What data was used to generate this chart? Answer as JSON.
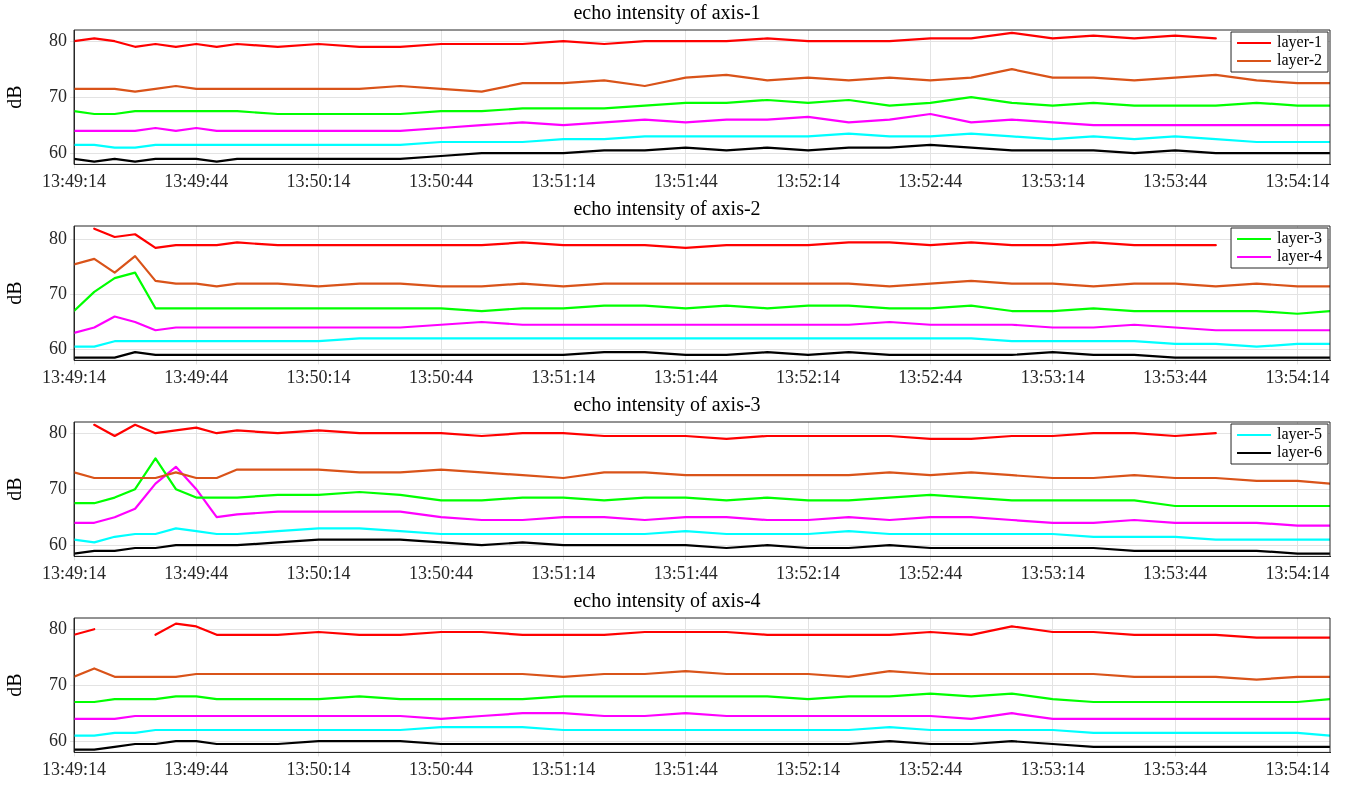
{
  "chart_data": [
    {
      "type": "line",
      "title": "echo intensity of axis-1",
      "ylabel": "dB",
      "grid": true,
      "legend": "top right",
      "marker": "none",
      "line_style": "solid",
      "x": [
        13.82056,
        13.82194,
        13.82333,
        13.82472,
        13.82611,
        13.8275,
        13.82889,
        13.83028,
        13.83167,
        13.83444,
        13.83722,
        13.84,
        13.84278,
        13.84556,
        13.84833,
        13.85111,
        13.85389,
        13.85667,
        13.85944,
        13.86222,
        13.865,
        13.86778,
        13.87056,
        13.87333,
        13.87611,
        13.87889,
        13.88167,
        13.88444,
        13.88722,
        13.89,
        13.89278,
        13.89556,
        13.89833,
        13.90111,
        13.90389,
        13.90611
      ],
      "xlim": [
        13.82056,
        13.90611
      ],
      "xticks": [
        {
          "value": 13.82056,
          "label": "13:49:14"
        },
        {
          "value": 13.82889,
          "label": "13:49:44"
        },
        {
          "value": 13.83722,
          "label": "13:50:14"
        },
        {
          "value": 13.84556,
          "label": "13:50:44"
        },
        {
          "value": 13.85389,
          "label": "13:51:14"
        },
        {
          "value": 13.86222,
          "label": "13:51:44"
        },
        {
          "value": 13.87056,
          "label": "13:52:14"
        },
        {
          "value": 13.87889,
          "label": "13:52:44"
        },
        {
          "value": 13.88722,
          "label": "13:53:14"
        },
        {
          "value": 13.89556,
          "label": "13:53:44"
        },
        {
          "value": 13.90389,
          "label": "13:54:14"
        }
      ],
      "ylim": [
        58,
        82
      ],
      "yticks": [
        60,
        70,
        80
      ],
      "series": [
        {
          "name": "layer-1",
          "color": "#ff0000",
          "values": [
            80,
            80.5,
            80,
            79,
            79.5,
            79,
            79.5,
            79,
            79.5,
            79,
            79.5,
            79,
            79,
            79.5,
            79.5,
            79.5,
            80,
            79.5,
            80,
            80,
            80,
            80.5,
            80,
            80,
            80,
            80.5,
            80.5,
            81.5,
            80.5,
            81,
            80.5,
            81,
            80.5,
            null,
            null,
            null
          ]
        },
        {
          "name": "layer-2",
          "color": "#d95319",
          "values": [
            71.5,
            71.5,
            71.5,
            71,
            71.5,
            72,
            71.5,
            71.5,
            71.5,
            71.5,
            71.5,
            71.5,
            72,
            71.5,
            71,
            72.5,
            72.5,
            73,
            72,
            73.5,
            74,
            73,
            73.5,
            73,
            73.5,
            73,
            73.5,
            75,
            73.5,
            73.5,
            73,
            73.5,
            74,
            73,
            72.5,
            72.5
          ]
        },
        {
          "color": "#00ff00",
          "values": [
            67.5,
            67,
            67,
            67.5,
            67.5,
            67.5,
            67.5,
            67.5,
            67.5,
            67,
            67,
            67,
            67,
            67.5,
            67.5,
            68,
            68,
            68,
            68.5,
            69,
            69,
            69.5,
            69,
            69.5,
            68.5,
            69,
            70,
            69,
            68.5,
            69,
            68.5,
            68.5,
            68.5,
            69,
            68.5,
            68.5
          ]
        },
        {
          "color": "#ff00ff",
          "values": [
            64,
            64,
            64,
            64,
            64.5,
            64,
            64.5,
            64,
            64,
            64,
            64,
            64,
            64,
            64.5,
            65,
            65.5,
            65,
            65.5,
            66,
            65.5,
            66,
            66,
            66.5,
            65.5,
            66,
            67,
            65.5,
            66,
            65.5,
            65,
            65,
            65,
            65,
            65,
            65,
            65
          ]
        },
        {
          "color": "#00ffff",
          "values": [
            61.5,
            61.5,
            61,
            61,
            61.5,
            61.5,
            61.5,
            61.5,
            61.5,
            61.5,
            61.5,
            61.5,
            61.5,
            62,
            62,
            62,
            62.5,
            62.5,
            63,
            63,
            63,
            63,
            63,
            63.5,
            63,
            63,
            63.5,
            63,
            62.5,
            63,
            62.5,
            63,
            62.5,
            62,
            62,
            62
          ]
        },
        {
          "color": "#000000",
          "values": [
            59,
            58.5,
            59,
            58.5,
            59,
            59,
            59,
            58.5,
            59,
            59,
            59,
            59,
            59,
            59.5,
            60,
            60,
            60,
            60.5,
            60.5,
            61,
            60.5,
            61,
            60.5,
            61,
            61,
            61.5,
            61,
            60.5,
            60.5,
            60.5,
            60,
            60.5,
            60,
            60,
            60,
            60
          ]
        }
      ]
    },
    {
      "type": "line",
      "title": "echo intensity of axis-2",
      "ylabel": "dB",
      "grid": true,
      "legend": "top right",
      "marker": "none",
      "line_style": "solid",
      "x": [
        13.82056,
        13.82194,
        13.82333,
        13.82472,
        13.82611,
        13.8275,
        13.82889,
        13.83028,
        13.83167,
        13.83444,
        13.83722,
        13.84,
        13.84278,
        13.84556,
        13.84833,
        13.85111,
        13.85389,
        13.85667,
        13.85944,
        13.86222,
        13.865,
        13.86778,
        13.87056,
        13.87333,
        13.87611,
        13.87889,
        13.88167,
        13.88444,
        13.88722,
        13.89,
        13.89278,
        13.89556,
        13.89833,
        13.90111,
        13.90389,
        13.90611
      ],
      "xlim": [
        13.82056,
        13.90611
      ],
      "xticks": [
        {
          "value": 13.82056,
          "label": "13:49:14"
        },
        {
          "value": 13.82889,
          "label": "13:49:44"
        },
        {
          "value": 13.83722,
          "label": "13:50:14"
        },
        {
          "value": 13.84556,
          "label": "13:50:44"
        },
        {
          "value": 13.85389,
          "label": "13:51:14"
        },
        {
          "value": 13.86222,
          "label": "13:51:44"
        },
        {
          "value": 13.87056,
          "label": "13:52:14"
        },
        {
          "value": 13.87889,
          "label": "13:52:44"
        },
        {
          "value": 13.88722,
          "label": "13:53:14"
        },
        {
          "value": 13.89556,
          "label": "13:53:44"
        },
        {
          "value": 13.90389,
          "label": "13:54:14"
        }
      ],
      "ylim": [
        58,
        82.5
      ],
      "yticks": [
        60,
        70,
        80
      ],
      "series": [
        {
          "color": "#ff0000",
          "values": [
            null,
            82,
            80.5,
            81,
            78.5,
            79,
            79,
            79,
            79.5,
            79,
            79,
            79,
            79,
            79,
            79,
            79.5,
            79,
            79,
            79,
            78.5,
            79,
            79,
            79,
            79.5,
            79.5,
            79,
            79.5,
            79,
            79,
            79.5,
            79,
            79,
            79,
            null,
            null,
            null
          ]
        },
        {
          "color": "#d95319",
          "values": [
            75.5,
            76.5,
            74,
            77,
            72.5,
            72,
            72,
            71.5,
            72,
            72,
            71.5,
            72,
            72,
            71.5,
            71.5,
            72,
            71.5,
            72,
            72,
            72,
            72,
            72,
            72,
            72,
            71.5,
            72,
            72.5,
            72,
            72,
            71.5,
            72,
            72,
            71.5,
            72,
            71.5,
            71.5
          ]
        },
        {
          "name": "layer-3",
          "color": "#00ff00",
          "values": [
            67,
            70.5,
            73,
            74,
            67.5,
            67.5,
            67.5,
            67.5,
            67.5,
            67.5,
            67.5,
            67.5,
            67.5,
            67.5,
            67,
            67.5,
            67.5,
            68,
            68,
            67.5,
            68,
            67.5,
            68,
            68,
            67.5,
            67.5,
            68,
            67,
            67,
            67.5,
            67,
            67,
            67,
            67,
            66.5,
            67
          ]
        },
        {
          "name": "layer-4",
          "color": "#ff00ff",
          "values": [
            63,
            64,
            66,
            65,
            63.5,
            64,
            64,
            64,
            64,
            64,
            64,
            64,
            64,
            64.5,
            65,
            64.5,
            64.5,
            64.5,
            64.5,
            64.5,
            64.5,
            64.5,
            64.5,
            64.5,
            65,
            64.5,
            64.5,
            64.5,
            64,
            64,
            64.5,
            64,
            63.5,
            63.5,
            63.5,
            63.5
          ]
        },
        {
          "color": "#00ffff",
          "values": [
            60.5,
            60.5,
            61.5,
            61.5,
            61.5,
            61.5,
            61.5,
            61.5,
            61.5,
            61.5,
            61.5,
            62,
            62,
            62,
            62,
            62,
            62,
            62,
            62,
            62,
            62,
            62,
            62,
            62,
            62,
            62,
            62,
            61.5,
            61.5,
            61.5,
            61.5,
            61,
            61,
            60.5,
            61,
            61
          ]
        },
        {
          "color": "#000000",
          "values": [
            58.5,
            58.5,
            58.5,
            59.5,
            59,
            59,
            59,
            59,
            59,
            59,
            59,
            59,
            59,
            59,
            59,
            59,
            59,
            59.5,
            59.5,
            59,
            59,
            59.5,
            59,
            59.5,
            59,
            59,
            59,
            59,
            59.5,
            59,
            59,
            58.5,
            58.5,
            58.5,
            58.5,
            58.5
          ]
        }
      ]
    },
    {
      "type": "line",
      "title": "echo intensity of axis-3",
      "ylabel": "dB",
      "grid": true,
      "legend": "top right",
      "marker": "none",
      "line_style": "solid",
      "x": [
        13.82056,
        13.82194,
        13.82333,
        13.82472,
        13.82611,
        13.8275,
        13.82889,
        13.83028,
        13.83167,
        13.83444,
        13.83722,
        13.84,
        13.84278,
        13.84556,
        13.84833,
        13.85111,
        13.85389,
        13.85667,
        13.85944,
        13.86222,
        13.865,
        13.86778,
        13.87056,
        13.87333,
        13.87611,
        13.87889,
        13.88167,
        13.88444,
        13.88722,
        13.89,
        13.89278,
        13.89556,
        13.89833,
        13.90111,
        13.90389,
        13.90611
      ],
      "xlim": [
        13.82056,
        13.90611
      ],
      "xticks": [
        {
          "value": 13.82056,
          "label": "13:49:14"
        },
        {
          "value": 13.82889,
          "label": "13:49:44"
        },
        {
          "value": 13.83722,
          "label": "13:50:14"
        },
        {
          "value": 13.84556,
          "label": "13:50:44"
        },
        {
          "value": 13.85389,
          "label": "13:51:14"
        },
        {
          "value": 13.86222,
          "label": "13:51:44"
        },
        {
          "value": 13.87056,
          "label": "13:52:14"
        },
        {
          "value": 13.87889,
          "label": "13:52:44"
        },
        {
          "value": 13.88722,
          "label": "13:53:14"
        },
        {
          "value": 13.89556,
          "label": "13:53:44"
        },
        {
          "value": 13.90389,
          "label": "13:54:14"
        }
      ],
      "ylim": [
        58,
        82
      ],
      "yticks": [
        60,
        70,
        80
      ],
      "series": [
        {
          "color": "#ff0000",
          "values": [
            null,
            81.5,
            79.5,
            81.5,
            80,
            80.5,
            81,
            80,
            80.5,
            80,
            80.5,
            80,
            80,
            80,
            79.5,
            80,
            80,
            79.5,
            79.5,
            79.5,
            79,
            79.5,
            79.5,
            79.5,
            79.5,
            79,
            79,
            79.5,
            79.5,
            80,
            80,
            79.5,
            80,
            null,
            null,
            null
          ]
        },
        {
          "color": "#d95319",
          "values": [
            73,
            72,
            72,
            72,
            72,
            73,
            72,
            72,
            73.5,
            73.5,
            73.5,
            73,
            73,
            73.5,
            73,
            72.5,
            72,
            73,
            73,
            72.5,
            72.5,
            72.5,
            72.5,
            72.5,
            73,
            72.5,
            73,
            72.5,
            72,
            72,
            72.5,
            72,
            72,
            71.5,
            71.5,
            71
          ]
        },
        {
          "color": "#00ff00",
          "values": [
            67.5,
            67.5,
            68.5,
            70,
            75.5,
            70,
            68.5,
            68.5,
            68.5,
            69,
            69,
            69.5,
            69,
            68,
            68,
            68.5,
            68.5,
            68,
            68.5,
            68.5,
            68,
            68.5,
            68,
            68,
            68.5,
            69,
            68.5,
            68,
            68,
            68,
            68,
            67,
            67,
            67,
            67,
            67
          ]
        },
        {
          "color": "#ff00ff",
          "values": [
            64,
            64,
            65,
            66.5,
            71,
            74,
            70,
            65,
            65.5,
            66,
            66,
            66,
            66,
            65,
            64.5,
            64.5,
            65,
            65,
            64.5,
            65,
            65,
            64.5,
            64.5,
            65,
            64.5,
            65,
            65,
            64.5,
            64,
            64,
            64.5,
            64,
            64,
            64,
            63.5,
            63.5
          ]
        },
        {
          "name": "layer-5",
          "color": "#00ffff",
          "values": [
            61,
            60.5,
            61.5,
            62,
            62,
            63,
            62.5,
            62,
            62,
            62.5,
            63,
            63,
            62.5,
            62,
            62,
            62,
            62,
            62,
            62,
            62.5,
            62,
            62,
            62,
            62.5,
            62,
            62,
            62,
            62,
            62,
            61.5,
            61.5,
            61.5,
            61,
            61,
            61,
            61
          ]
        },
        {
          "name": "layer-6",
          "color": "#000000",
          "values": [
            58.5,
            59,
            59,
            59.5,
            59.5,
            60,
            60,
            60,
            60,
            60.5,
            61,
            61,
            61,
            60.5,
            60,
            60.5,
            60,
            60,
            60,
            60,
            59.5,
            60,
            59.5,
            59.5,
            60,
            59.5,
            59.5,
            59.5,
            59.5,
            59.5,
            59,
            59,
            59,
            59,
            58.5,
            58.5
          ]
        }
      ]
    },
    {
      "type": "line",
      "title": "echo intensity of axis-4",
      "ylabel": "dB",
      "grid": true,
      "marker": "none",
      "line_style": "solid",
      "x": [
        13.82056,
        13.82194,
        13.82333,
        13.82472,
        13.82611,
        13.8275,
        13.82889,
        13.83028,
        13.83167,
        13.83444,
        13.83722,
        13.84,
        13.84278,
        13.84556,
        13.84833,
        13.85111,
        13.85389,
        13.85667,
        13.85944,
        13.86222,
        13.865,
        13.86778,
        13.87056,
        13.87333,
        13.87611,
        13.87889,
        13.88167,
        13.88444,
        13.88722,
        13.89,
        13.89278,
        13.89556,
        13.89833,
        13.90111,
        13.90389,
        13.90611
      ],
      "xlim": [
        13.82056,
        13.90611
      ],
      "xticks": [
        {
          "value": 13.82056,
          "label": "13:49:14"
        },
        {
          "value": 13.82889,
          "label": "13:49:44"
        },
        {
          "value": 13.83722,
          "label": "13:50:14"
        },
        {
          "value": 13.84556,
          "label": "13:50:44"
        },
        {
          "value": 13.85389,
          "label": "13:51:14"
        },
        {
          "value": 13.86222,
          "label": "13:51:44"
        },
        {
          "value": 13.87056,
          "label": "13:52:14"
        },
        {
          "value": 13.87889,
          "label": "13:52:44"
        },
        {
          "value": 13.88722,
          "label": "13:53:14"
        },
        {
          "value": 13.89556,
          "label": "13:53:44"
        },
        {
          "value": 13.90389,
          "label": "13:54:14"
        }
      ],
      "ylim": [
        58,
        82
      ],
      "yticks": [
        60,
        70,
        80
      ],
      "series": [
        {
          "color": "#ff0000",
          "values": [
            79,
            80,
            null,
            null,
            79,
            81,
            80.5,
            79,
            79,
            79,
            79.5,
            79,
            79,
            79.5,
            79.5,
            79,
            79,
            79,
            79.5,
            79.5,
            79.5,
            79,
            79,
            79,
            79,
            79.5,
            79,
            80.5,
            79.5,
            79.5,
            79,
            79,
            79,
            78.5,
            78.5,
            78.5
          ]
        },
        {
          "color": "#d95319",
          "values": [
            71.5,
            73,
            71.5,
            71.5,
            71.5,
            71.5,
            72,
            72,
            72,
            72,
            72,
            72,
            72,
            72,
            72,
            72,
            71.5,
            72,
            72,
            72.5,
            72,
            72,
            72,
            71.5,
            72.5,
            72,
            72,
            72,
            72,
            72,
            71.5,
            71.5,
            71.5,
            71,
            71.5,
            71.5
          ]
        },
        {
          "color": "#00ff00",
          "values": [
            67,
            67,
            67.5,
            67.5,
            67.5,
            68,
            68,
            67.5,
            67.5,
            67.5,
            67.5,
            68,
            67.5,
            67.5,
            67.5,
            67.5,
            68,
            68,
            68,
            68,
            68,
            68,
            67.5,
            68,
            68,
            68.5,
            68,
            68.5,
            67.5,
            67,
            67,
            67,
            67,
            67,
            67,
            67.5
          ]
        },
        {
          "color": "#ff00ff",
          "values": [
            64,
            64,
            64,
            64.5,
            64.5,
            64.5,
            64.5,
            64.5,
            64.5,
            64.5,
            64.5,
            64.5,
            64.5,
            64,
            64.5,
            65,
            65,
            64.5,
            64.5,
            65,
            64.5,
            64.5,
            64.5,
            64.5,
            64.5,
            64.5,
            64,
            65,
            64,
            64,
            64,
            64,
            64,
            64,
            64,
            64
          ]
        },
        {
          "color": "#00ffff",
          "values": [
            61,
            61,
            61.5,
            61.5,
            62,
            62,
            62,
            62,
            62,
            62,
            62,
            62,
            62,
            62.5,
            62.5,
            62.5,
            62,
            62,
            62,
            62,
            62,
            62,
            62,
            62,
            62.5,
            62,
            62,
            62,
            62,
            61.5,
            61.5,
            61.5,
            61.5,
            61.5,
            61.5,
            61
          ]
        },
        {
          "color": "#000000",
          "values": [
            58.5,
            58.5,
            59,
            59.5,
            59.5,
            60,
            60,
            59.5,
            59.5,
            59.5,
            60,
            60,
            60,
            59.5,
            59.5,
            59.5,
            59.5,
            59.5,
            59.5,
            59.5,
            59.5,
            59.5,
            59.5,
            59.5,
            60,
            59.5,
            59.5,
            60,
            59.5,
            59,
            59,
            59,
            59,
            59,
            59,
            59
          ]
        }
      ]
    }
  ]
}
